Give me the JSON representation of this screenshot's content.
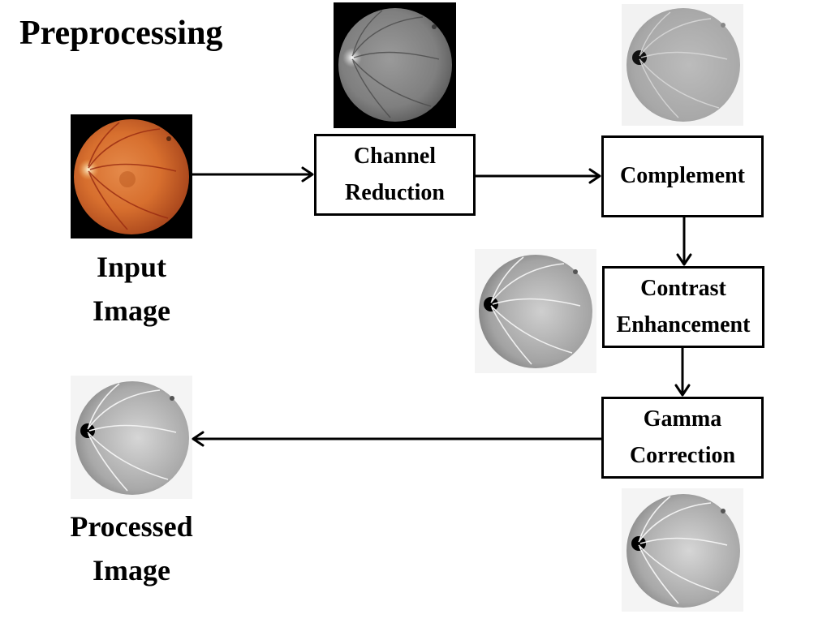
{
  "title": "Preprocessing",
  "steps": {
    "channel_reduction": "Channel Reduction",
    "complement": "Complement",
    "contrast_enhancement": "Contrast Enhancement",
    "gamma_correction": "Gamma Correction"
  },
  "labels": {
    "input_image": "Input Image",
    "processed_image": "Processed Image"
  }
}
